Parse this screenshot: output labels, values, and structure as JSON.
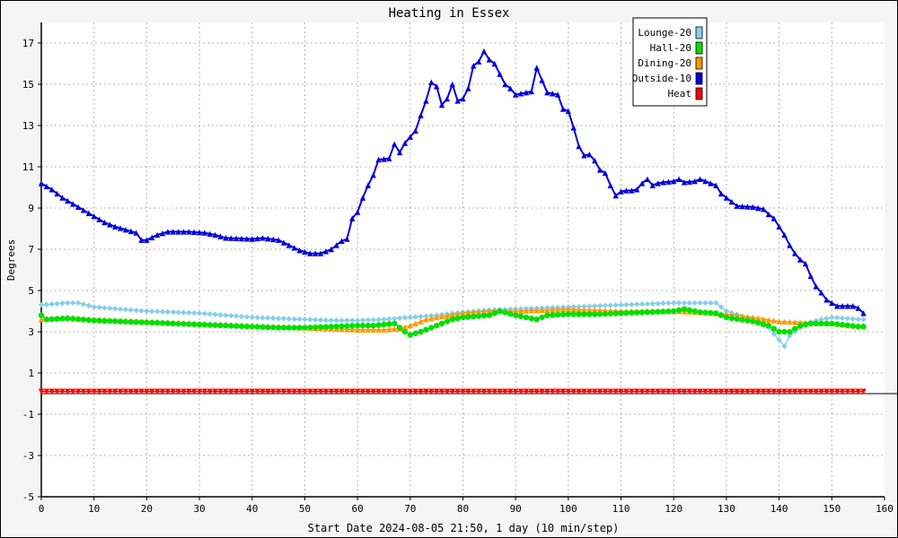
{
  "chart_data": {
    "type": "line",
    "title": "Heating in Essex",
    "xlabel": "Start Date 2024-08-05 21:50, 1 day (10 min/step)",
    "ylabel": "Degrees",
    "xlim": [
      0,
      160
    ],
    "ylim": [
      -5,
      18
    ],
    "x_ticks": [
      "0",
      "10",
      "20",
      "30",
      "40",
      "50",
      "60",
      "70",
      "80",
      "90",
      "100",
      "110",
      "120",
      "130",
      "140",
      "150",
      "160"
    ],
    "y_ticks": [
      "17",
      "15",
      "13",
      "11",
      "9",
      "7",
      "5",
      "3",
      "1",
      "-1",
      "-3",
      "-5"
    ],
    "grid": true,
    "legend_position": "top-right",
    "series": [
      {
        "name": "Lounge-20",
        "color": "#87ceeb",
        "marker": "diamond",
        "points": [
          [
            0,
            4.3
          ],
          [
            5,
            4.4
          ],
          [
            7,
            4.4
          ],
          [
            10,
            4.2
          ],
          [
            15,
            4.1
          ],
          [
            20,
            4.0
          ],
          [
            25,
            3.95
          ],
          [
            30,
            3.9
          ],
          [
            35,
            3.8
          ],
          [
            40,
            3.7
          ],
          [
            45,
            3.65
          ],
          [
            50,
            3.6
          ],
          [
            55,
            3.55
          ],
          [
            60,
            3.55
          ],
          [
            65,
            3.6
          ],
          [
            70,
            3.7
          ],
          [
            75,
            3.8
          ],
          [
            80,
            3.95
          ],
          [
            85,
            4.05
          ],
          [
            90,
            4.1
          ],
          [
            95,
            4.15
          ],
          [
            100,
            4.2
          ],
          [
            105,
            4.25
          ],
          [
            110,
            4.3
          ],
          [
            115,
            4.35
          ],
          [
            120,
            4.4
          ],
          [
            125,
            4.4
          ],
          [
            128,
            4.4
          ],
          [
            130,
            4.0
          ],
          [
            135,
            3.6
          ],
          [
            138,
            3.2
          ],
          [
            140,
            2.6
          ],
          [
            141,
            2.3
          ],
          [
            142,
            2.8
          ],
          [
            145,
            3.4
          ],
          [
            148,
            3.6
          ],
          [
            150,
            3.7
          ],
          [
            155,
            3.6
          ],
          [
            156,
            3.6
          ]
        ]
      },
      {
        "name": "Hall-20",
        "color": "#00e000",
        "marker": "circle",
        "points": [
          [
            0,
            3.8
          ],
          [
            1,
            3.6
          ],
          [
            5,
            3.65
          ],
          [
            10,
            3.55
          ],
          [
            15,
            3.5
          ],
          [
            20,
            3.45
          ],
          [
            25,
            3.4
          ],
          [
            30,
            3.35
          ],
          [
            35,
            3.3
          ],
          [
            40,
            3.25
          ],
          [
            45,
            3.2
          ],
          [
            50,
            3.2
          ],
          [
            55,
            3.25
          ],
          [
            60,
            3.3
          ],
          [
            63,
            3.3
          ],
          [
            65,
            3.35
          ],
          [
            67,
            3.4
          ],
          [
            68,
            3.2
          ],
          [
            69,
            3.0
          ],
          [
            70,
            2.85
          ],
          [
            72,
            3.0
          ],
          [
            75,
            3.3
          ],
          [
            78,
            3.6
          ],
          [
            80,
            3.7
          ],
          [
            85,
            3.8
          ],
          [
            87,
            4.0
          ],
          [
            90,
            3.8
          ],
          [
            92,
            3.7
          ],
          [
            94,
            3.6
          ],
          [
            96,
            3.8
          ],
          [
            100,
            3.85
          ],
          [
            105,
            3.85
          ],
          [
            110,
            3.9
          ],
          [
            115,
            3.95
          ],
          [
            120,
            4.0
          ],
          [
            122,
            4.1
          ],
          [
            125,
            3.95
          ],
          [
            128,
            3.9
          ],
          [
            130,
            3.7
          ],
          [
            135,
            3.5
          ],
          [
            138,
            3.3
          ],
          [
            140,
            3.0
          ],
          [
            142,
            3.0
          ],
          [
            144,
            3.3
          ],
          [
            146,
            3.4
          ],
          [
            150,
            3.4
          ],
          [
            155,
            3.25
          ],
          [
            156,
            3.25
          ]
        ]
      },
      {
        "name": "Dining-20",
        "color": "#ff9900",
        "marker": "triangle",
        "points": [
          [
            0,
            3.6
          ],
          [
            5,
            3.7
          ],
          [
            10,
            3.6
          ],
          [
            15,
            3.55
          ],
          [
            20,
            3.5
          ],
          [
            25,
            3.45
          ],
          [
            30,
            3.4
          ],
          [
            35,
            3.35
          ],
          [
            40,
            3.3
          ],
          [
            45,
            3.25
          ],
          [
            50,
            3.2
          ],
          [
            55,
            3.15
          ],
          [
            60,
            3.1
          ],
          [
            65,
            3.1
          ],
          [
            68,
            3.15
          ],
          [
            70,
            3.3
          ],
          [
            73,
            3.6
          ],
          [
            75,
            3.7
          ],
          [
            80,
            3.9
          ],
          [
            85,
            4.0
          ],
          [
            90,
            4.0
          ],
          [
            95,
            4.05
          ],
          [
            100,
            4.1
          ],
          [
            105,
            4.05
          ],
          [
            110,
            4.0
          ],
          [
            115,
            4.0
          ],
          [
            120,
            4.0
          ],
          [
            125,
            3.95
          ],
          [
            130,
            3.85
          ],
          [
            135,
            3.7
          ],
          [
            140,
            3.5
          ],
          [
            145,
            3.45
          ],
          [
            150,
            3.4
          ],
          [
            155,
            3.3
          ],
          [
            156,
            3.3
          ]
        ]
      },
      {
        "name": "Outside-10",
        "color": "#0000dd",
        "marker": "triangle",
        "points": [
          [
            0,
            10.2
          ],
          [
            2,
            9.9
          ],
          [
            4,
            9.5
          ],
          [
            6,
            9.2
          ],
          [
            8,
            8.9
          ],
          [
            10,
            8.6
          ],
          [
            12,
            8.3
          ],
          [
            14,
            8.1
          ],
          [
            16,
            7.95
          ],
          [
            18,
            7.8
          ],
          [
            19,
            7.45
          ],
          [
            20,
            7.45
          ],
          [
            22,
            7.7
          ],
          [
            24,
            7.85
          ],
          [
            28,
            7.85
          ],
          [
            31,
            7.8
          ],
          [
            33,
            7.7
          ],
          [
            35,
            7.55
          ],
          [
            40,
            7.5
          ],
          [
            42,
            7.55
          ],
          [
            45,
            7.45
          ],
          [
            47,
            7.2
          ],
          [
            49,
            6.95
          ],
          [
            51,
            6.8
          ],
          [
            53,
            6.8
          ],
          [
            55,
            7.0
          ],
          [
            57,
            7.4
          ],
          [
            58,
            7.5
          ],
          [
            59,
            8.5
          ],
          [
            60,
            8.8
          ],
          [
            61,
            9.5
          ],
          [
            62,
            10.1
          ],
          [
            63,
            10.6
          ],
          [
            64,
            11.35
          ],
          [
            66,
            11.4
          ],
          [
            67,
            12.1
          ],
          [
            68,
            11.7
          ],
          [
            69,
            12.15
          ],
          [
            70,
            12.45
          ],
          [
            71,
            12.75
          ],
          [
            72,
            13.5
          ],
          [
            73,
            14.2
          ],
          [
            74,
            15.1
          ],
          [
            75,
            14.9
          ],
          [
            76,
            14.0
          ],
          [
            77,
            14.3
          ],
          [
            78,
            15.0
          ],
          [
            79,
            14.2
          ],
          [
            80,
            14.3
          ],
          [
            81,
            14.8
          ],
          [
            82,
            15.9
          ],
          [
            83,
            16.1
          ],
          [
            84,
            16.6
          ],
          [
            85,
            16.2
          ],
          [
            86,
            16.0
          ],
          [
            87,
            15.5
          ],
          [
            88,
            15.0
          ],
          [
            89,
            14.8
          ],
          [
            90,
            14.5
          ],
          [
            91,
            14.55
          ],
          [
            92,
            14.6
          ],
          [
            93,
            14.65
          ],
          [
            94,
            15.8
          ],
          [
            95,
            15.2
          ],
          [
            96,
            14.6
          ],
          [
            97,
            14.55
          ],
          [
            98,
            14.5
          ],
          [
            99,
            13.8
          ],
          [
            100,
            13.7
          ],
          [
            101,
            12.9
          ],
          [
            102,
            12.0
          ],
          [
            103,
            11.55
          ],
          [
            104,
            11.6
          ],
          [
            105,
            11.3
          ],
          [
            106,
            10.85
          ],
          [
            107,
            10.7
          ],
          [
            108,
            10.1
          ],
          [
            109,
            9.6
          ],
          [
            110,
            9.8
          ],
          [
            111,
            9.85
          ],
          [
            112,
            9.85
          ],
          [
            113,
            9.9
          ],
          [
            114,
            10.2
          ],
          [
            115,
            10.4
          ],
          [
            116,
            10.1
          ],
          [
            117,
            10.2
          ],
          [
            118,
            10.25
          ],
          [
            120,
            10.3
          ],
          [
            121,
            10.4
          ],
          [
            122,
            10.25
          ],
          [
            124,
            10.3
          ],
          [
            125,
            10.4
          ],
          [
            126,
            10.3
          ],
          [
            128,
            10.1
          ],
          [
            129,
            9.7
          ],
          [
            130,
            9.5
          ],
          [
            131,
            9.3
          ],
          [
            132,
            9.1
          ],
          [
            135,
            9.05
          ],
          [
            137,
            8.95
          ],
          [
            138,
            8.7
          ],
          [
            139,
            8.5
          ],
          [
            140,
            8.1
          ],
          [
            141,
            7.7
          ],
          [
            142,
            7.2
          ],
          [
            143,
            6.8
          ],
          [
            144,
            6.5
          ],
          [
            145,
            6.3
          ],
          [
            146,
            5.7
          ],
          [
            147,
            5.2
          ],
          [
            148,
            4.9
          ],
          [
            149,
            4.55
          ],
          [
            150,
            4.4
          ],
          [
            151,
            4.25
          ],
          [
            152,
            4.25
          ],
          [
            154,
            4.25
          ],
          [
            155,
            4.15
          ],
          [
            156,
            3.9
          ]
        ]
      },
      {
        "name": "Heat",
        "color": "#ff0000",
        "marker": "triangle-down",
        "points": [
          [
            0,
            0.1
          ],
          [
            156,
            0.1
          ]
        ]
      }
    ]
  }
}
